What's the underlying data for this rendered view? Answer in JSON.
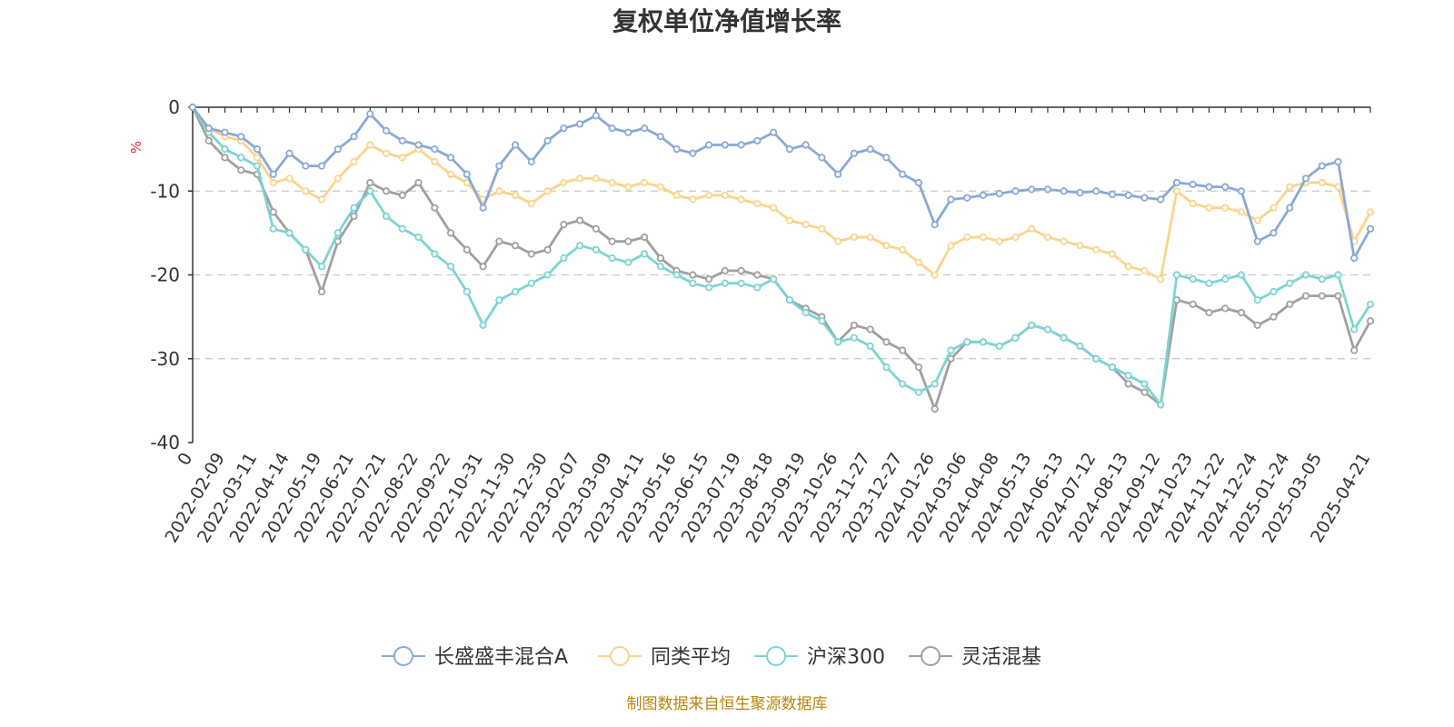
{
  "chart_data": {
    "type": "line",
    "title": "复权单位净值增长率",
    "ylabel": "%",
    "ylim": [
      -40,
      0
    ],
    "yticks": [
      "0",
      "-10",
      "-20",
      "-30",
      "-40"
    ],
    "x_ticks": [
      "0",
      "2022-02-09",
      "2022-03-11",
      "2022-04-14",
      "2022-05-19",
      "2022-06-21",
      "2022-07-21",
      "2022-08-22",
      "2022-09-22",
      "2022-10-31",
      "2022-11-30",
      "2022-12-30",
      "2023-02-07",
      "2023-03-09",
      "2023-04-11",
      "2023-05-16",
      "2023-06-15",
      "2023-07-19",
      "2023-08-18",
      "2023-09-19",
      "2023-10-26",
      "2023-11-27",
      "2023-12-27",
      "2024-01-26",
      "2024-03-06",
      "2024-04-08",
      "2024-05-13",
      "2024-06-13",
      "2024-07-12",
      "2024-08-13",
      "2024-09-12",
      "2024-10-23",
      "2024-11-22",
      "2024-12-24",
      "2025-01-24",
      "2025-03-05",
      "2025-04-21"
    ],
    "grid": "horizontal-dashed",
    "legend_position": "bottom",
    "x": [
      "0",
      "2022-01-20",
      "2022-02-09",
      "2022-02-24",
      "2022-03-11",
      "2022-03-28",
      "2022-04-14",
      "2022-04-29",
      "2022-05-19",
      "2022-06-06",
      "2022-06-21",
      "2022-07-06",
      "2022-07-21",
      "2022-08-05",
      "2022-08-22",
      "2022-09-06",
      "2022-09-22",
      "2022-10-14",
      "2022-10-31",
      "2022-11-15",
      "2022-11-30",
      "2022-12-15",
      "2022-12-30",
      "2023-01-17",
      "2023-02-07",
      "2023-02-22",
      "2023-03-09",
      "2023-03-24",
      "2023-04-11",
      "2023-04-26",
      "2023-05-16",
      "2023-05-31",
      "2023-06-15",
      "2023-07-04",
      "2023-07-19",
      "2023-08-03",
      "2023-08-18",
      "2023-09-04",
      "2023-09-19",
      "2023-10-11",
      "2023-10-26",
      "2023-11-10",
      "2023-11-27",
      "2023-12-12",
      "2023-12-27",
      "2024-01-11",
      "2024-01-26",
      "2024-02-21",
      "2024-03-06",
      "2024-03-21",
      "2024-04-08",
      "2024-04-24",
      "2024-05-13",
      "2024-05-28",
      "2024-06-13",
      "2024-06-28",
      "2024-07-12",
      "2024-07-29",
      "2024-08-13",
      "2024-08-28",
      "2024-09-12",
      "2024-09-27",
      "2024-10-23",
      "2024-11-07",
      "2024-11-22",
      "2024-12-09",
      "2024-12-24",
      "2025-01-09",
      "2025-01-24",
      "2025-02-17",
      "2025-03-05",
      "2025-03-20",
      "2025-04-08",
      "2025-04-21"
    ],
    "series": [
      {
        "name": "长盛盛丰混合A",
        "color": "#8aa8d8",
        "values": [
          0,
          -2.5,
          -3,
          -3.5,
          -5,
          -8,
          -5.5,
          -7,
          -7,
          -5,
          -3.5,
          -0.8,
          -2.8,
          -4,
          -4.5,
          -5,
          -6,
          -8,
          -12,
          -7,
          -4.5,
          -6.5,
          -4,
          -2.5,
          -2,
          -1,
          -2.5,
          -3,
          -2.5,
          -3.5,
          -5,
          -5.5,
          -4.5,
          -4.5,
          -4.5,
          -4,
          -3,
          -5,
          -4.5,
          -6,
          -8,
          -5.5,
          -5,
          -6,
          -8,
          -9,
          -14,
          -11,
          -10.8,
          -10.5,
          -10.3,
          -10,
          -9.8,
          -9.8,
          -10,
          -10.2,
          -10,
          -10.4,
          -10.5,
          -10.8,
          -11,
          -9,
          -9.2,
          -9.5,
          -9.5,
          -10,
          -16,
          -15,
          -12,
          -8.5,
          -7,
          -6.5,
          -18,
          -14.5
        ]
      },
      {
        "name": "同类平均",
        "color": "#fad48a",
        "values": [
          0,
          -2.5,
          -3.5,
          -4,
          -6,
          -9,
          -8.5,
          -10,
          -11,
          -8.5,
          -6.5,
          -4.5,
          -5.5,
          -6,
          -5,
          -6.5,
          -8,
          -9,
          -11,
          -10,
          -10.5,
          -11.5,
          -10,
          -9,
          -8.5,
          -8.5,
          -9,
          -9.5,
          -9,
          -9.5,
          -10.5,
          -11,
          -10.5,
          -10.5,
          -11,
          -11.5,
          -12,
          -13.5,
          -14,
          -14.5,
          -16,
          -15.5,
          -15.5,
          -16.5,
          -17,
          -18.5,
          -20,
          -16.5,
          -15.5,
          -15.5,
          -16,
          -15.5,
          -14.5,
          -15.5,
          -16,
          -16.5,
          -17,
          -17.5,
          -19,
          -19.5,
          -20.5,
          -10,
          -11.5,
          -12,
          -12,
          -12.5,
          -13.5,
          -12,
          -9.5,
          -9,
          -9,
          -9.5,
          -16,
          -12.5
        ]
      },
      {
        "name": "沪深300",
        "color": "#7dd3d3",
        "values": [
          0,
          -3,
          -5,
          -6,
          -7,
          -14.5,
          -15,
          -17,
          -19,
          -15,
          -12,
          -10,
          -13,
          -14.5,
          -15.5,
          -17.5,
          -19,
          -22,
          -26,
          -23,
          -22,
          -21,
          -20,
          -18,
          -16.5,
          -17,
          -18,
          -18.5,
          -17.5,
          -19,
          -20,
          -21,
          -21.5,
          -21,
          -21,
          -21.5,
          -20.5,
          -23,
          -24.5,
          -25.5,
          -28,
          -27.5,
          -28.5,
          -31,
          -33,
          -34,
          -33,
          -29,
          -28,
          -28,
          -28.5,
          -27.5,
          -26,
          -26.5,
          -27.5,
          -28.5,
          -30,
          -31,
          -32,
          -33,
          -35.5,
          -20,
          -20.5,
          -21,
          -20.5,
          -20,
          -23,
          -22,
          -21,
          -20,
          -20.5,
          -20,
          -26.5,
          -23.5
        ]
      },
      {
        "name": "灵活混基",
        "color": "#a0a0a0",
        "values": [
          0,
          -4,
          -6,
          -7.5,
          -8,
          -12.5,
          -15,
          -17,
          -22,
          -16,
          -13,
          -9,
          -10,
          -10.5,
          -9,
          -12,
          -15,
          -17,
          -19,
          -16,
          -16.5,
          -17.5,
          -17,
          -14,
          -13.5,
          -14.5,
          -16,
          -16,
          -15.5,
          -18,
          -19.5,
          -20,
          -20.5,
          -19.5,
          -19.5,
          -20,
          -20.5,
          -23,
          -24,
          -25,
          -28,
          -26,
          -26.5,
          -28,
          -29,
          -31,
          -36,
          -30,
          -28,
          -28,
          -28.5,
          -27.5,
          -26,
          -26.5,
          -27.5,
          -28.5,
          -30,
          -31,
          -33,
          -34,
          -35.5,
          -23,
          -23.5,
          -24.5,
          -24,
          -24.5,
          -26,
          -25,
          -23.5,
          -22.5,
          -22.5,
          -22.5,
          -29,
          -25.5
        ]
      }
    ]
  },
  "source_note": "制图数据来自恒生聚源数据库"
}
